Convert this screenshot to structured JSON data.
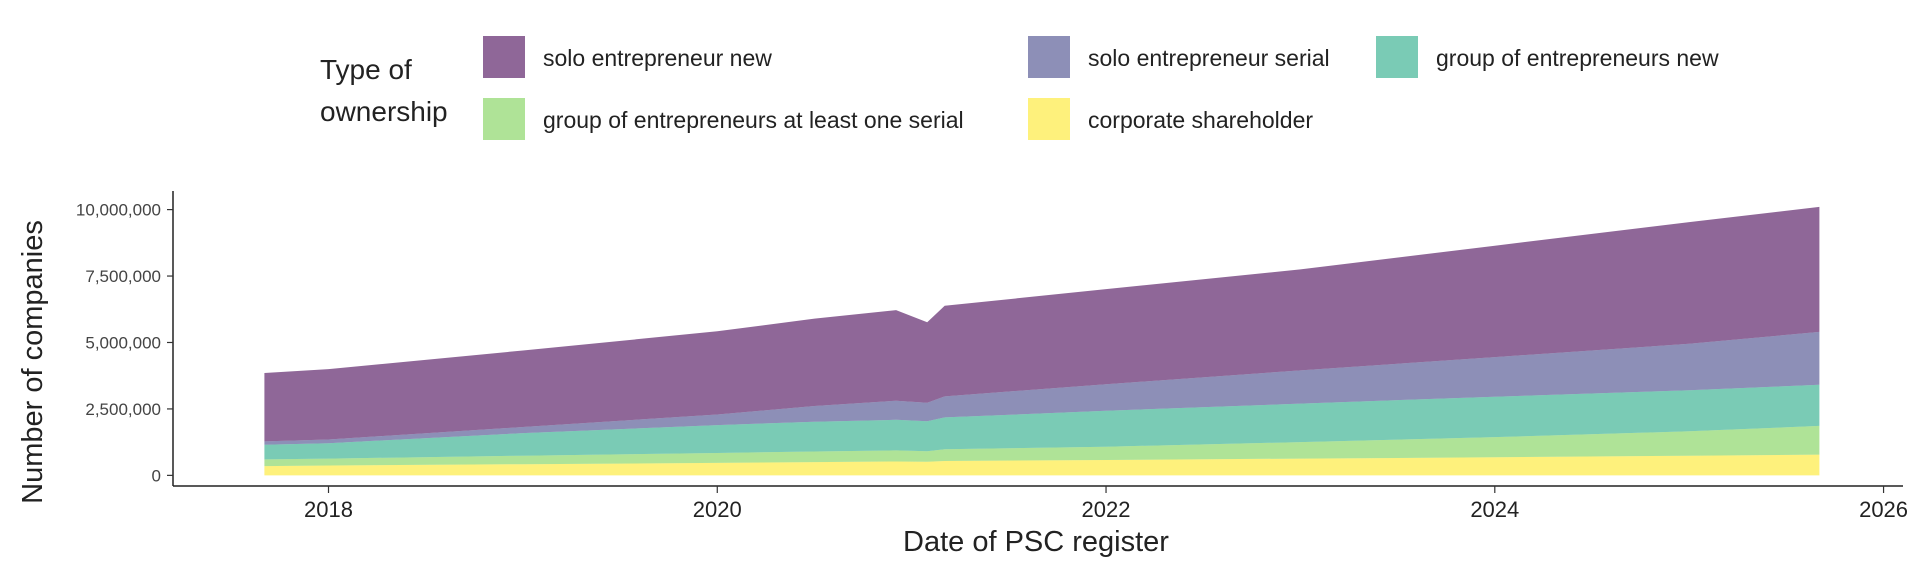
{
  "chart_data": {
    "type": "area",
    "stacked": true,
    "title": "",
    "xlabel": "Date of PSC register",
    "ylabel": "Number of companies",
    "legend": {
      "title_lines": [
        "Type of",
        "ownership"
      ],
      "position": "top"
    },
    "x_ticks": [
      {
        "value": 2018,
        "label": "2018"
      },
      {
        "value": 2020,
        "label": "2020"
      },
      {
        "value": 2022,
        "label": "2022"
      },
      {
        "value": 2024,
        "label": "2024"
      },
      {
        "value": 2026,
        "label": "2026"
      }
    ],
    "y_ticks": [
      {
        "value": 0,
        "label": "0"
      },
      {
        "value": 2500000,
        "label": "2,500,000"
      },
      {
        "value": 5000000,
        "label": "5,000,000"
      },
      {
        "value": 7500000,
        "label": "7,500,000"
      },
      {
        "value": 10000000,
        "label": "10,000,000"
      }
    ],
    "xlim": [
      2017.2,
      2026.1
    ],
    "ylim": [
      -400000,
      10700000
    ],
    "grid": false,
    "x": [
      2017.67,
      2018.0,
      2019.0,
      2020.0,
      2020.5,
      2020.92,
      2021.08,
      2021.17,
      2022.0,
      2023.0,
      2024.0,
      2025.0,
      2025.67
    ],
    "series": [
      {
        "name": "corporate shareholder",
        "color": "#FDE725",
        "values": [
          350000,
          370000,
          420000,
          470000,
          500000,
          520000,
          510000,
          540000,
          580000,
          630000,
          680000,
          740000,
          780000
        ]
      },
      {
        "name": "group of entrepreneurs at least one serial",
        "color": "#7AD151",
        "values": [
          250000,
          260000,
          320000,
          370000,
          400000,
          420000,
          400000,
          440000,
          500000,
          620000,
          760000,
          920000,
          1080000
        ]
      },
      {
        "name": "group of entrepreneurs new",
        "color": "#22A884",
        "values": [
          550000,
          580000,
          850000,
          1050000,
          1120000,
          1150000,
          1130000,
          1200000,
          1350000,
          1450000,
          1520000,
          1540000,
          1550000
        ]
      },
      {
        "name": "solo entrepreneur serial",
        "color": "#414487",
        "values": [
          130000,
          140000,
          230000,
          400000,
          590000,
          720000,
          690000,
          790000,
          1000000,
          1250000,
          1490000,
          1750000,
          1990000
        ]
      },
      {
        "name": "solo entrepreneur new",
        "color": "#440154",
        "values": [
          2570000,
          2650000,
          2880000,
          3130000,
          3290000,
          3410000,
          3030000,
          3410000,
          3580000,
          3800000,
          4190000,
          4580000,
          4700000
        ]
      }
    ],
    "legend_order": [
      "solo entrepreneur new",
      "solo entrepreneur serial",
      "group of entrepreneurs new",
      "group of entrepreneurs at least one serial",
      "corporate shareholder"
    ],
    "fill_opacity": 0.6
  }
}
